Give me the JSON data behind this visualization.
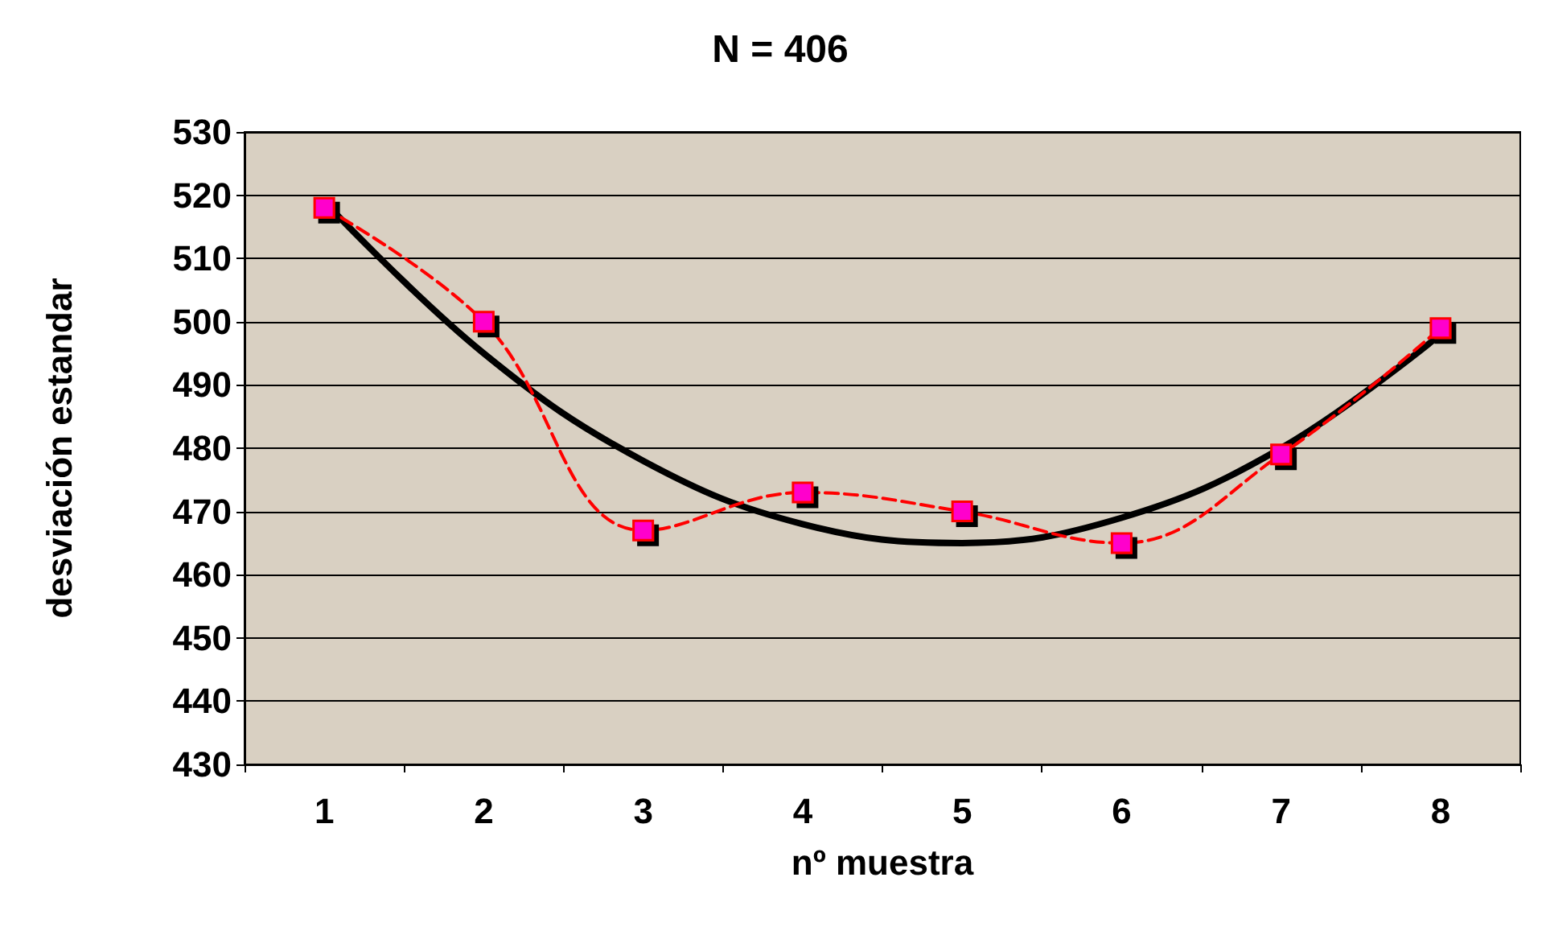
{
  "chart_data": {
    "type": "line",
    "title": "N = 406",
    "xlabel": "nº muestra",
    "ylabel": "desviación estandar",
    "categories": [
      "1",
      "2",
      "3",
      "4",
      "5",
      "6",
      "7",
      "8"
    ],
    "series": [
      {
        "color": "#ff0000",
        "values": [
          518,
          500,
          467,
          473,
          470,
          465,
          479,
          499
        ],
        "marker": "square",
        "line_style": "dashed"
      },
      {
        "color": "#000000",
        "values": [
          519,
          495,
          478,
          468,
          465,
          469,
          480,
          498
        ],
        "marker": "none",
        "line_style": "solid"
      }
    ],
    "ylim": [
      430,
      530
    ],
    "yticks": [
      430,
      440,
      450,
      460,
      470,
      480,
      490,
      500,
      510,
      520,
      530
    ],
    "grid": "y"
  }
}
